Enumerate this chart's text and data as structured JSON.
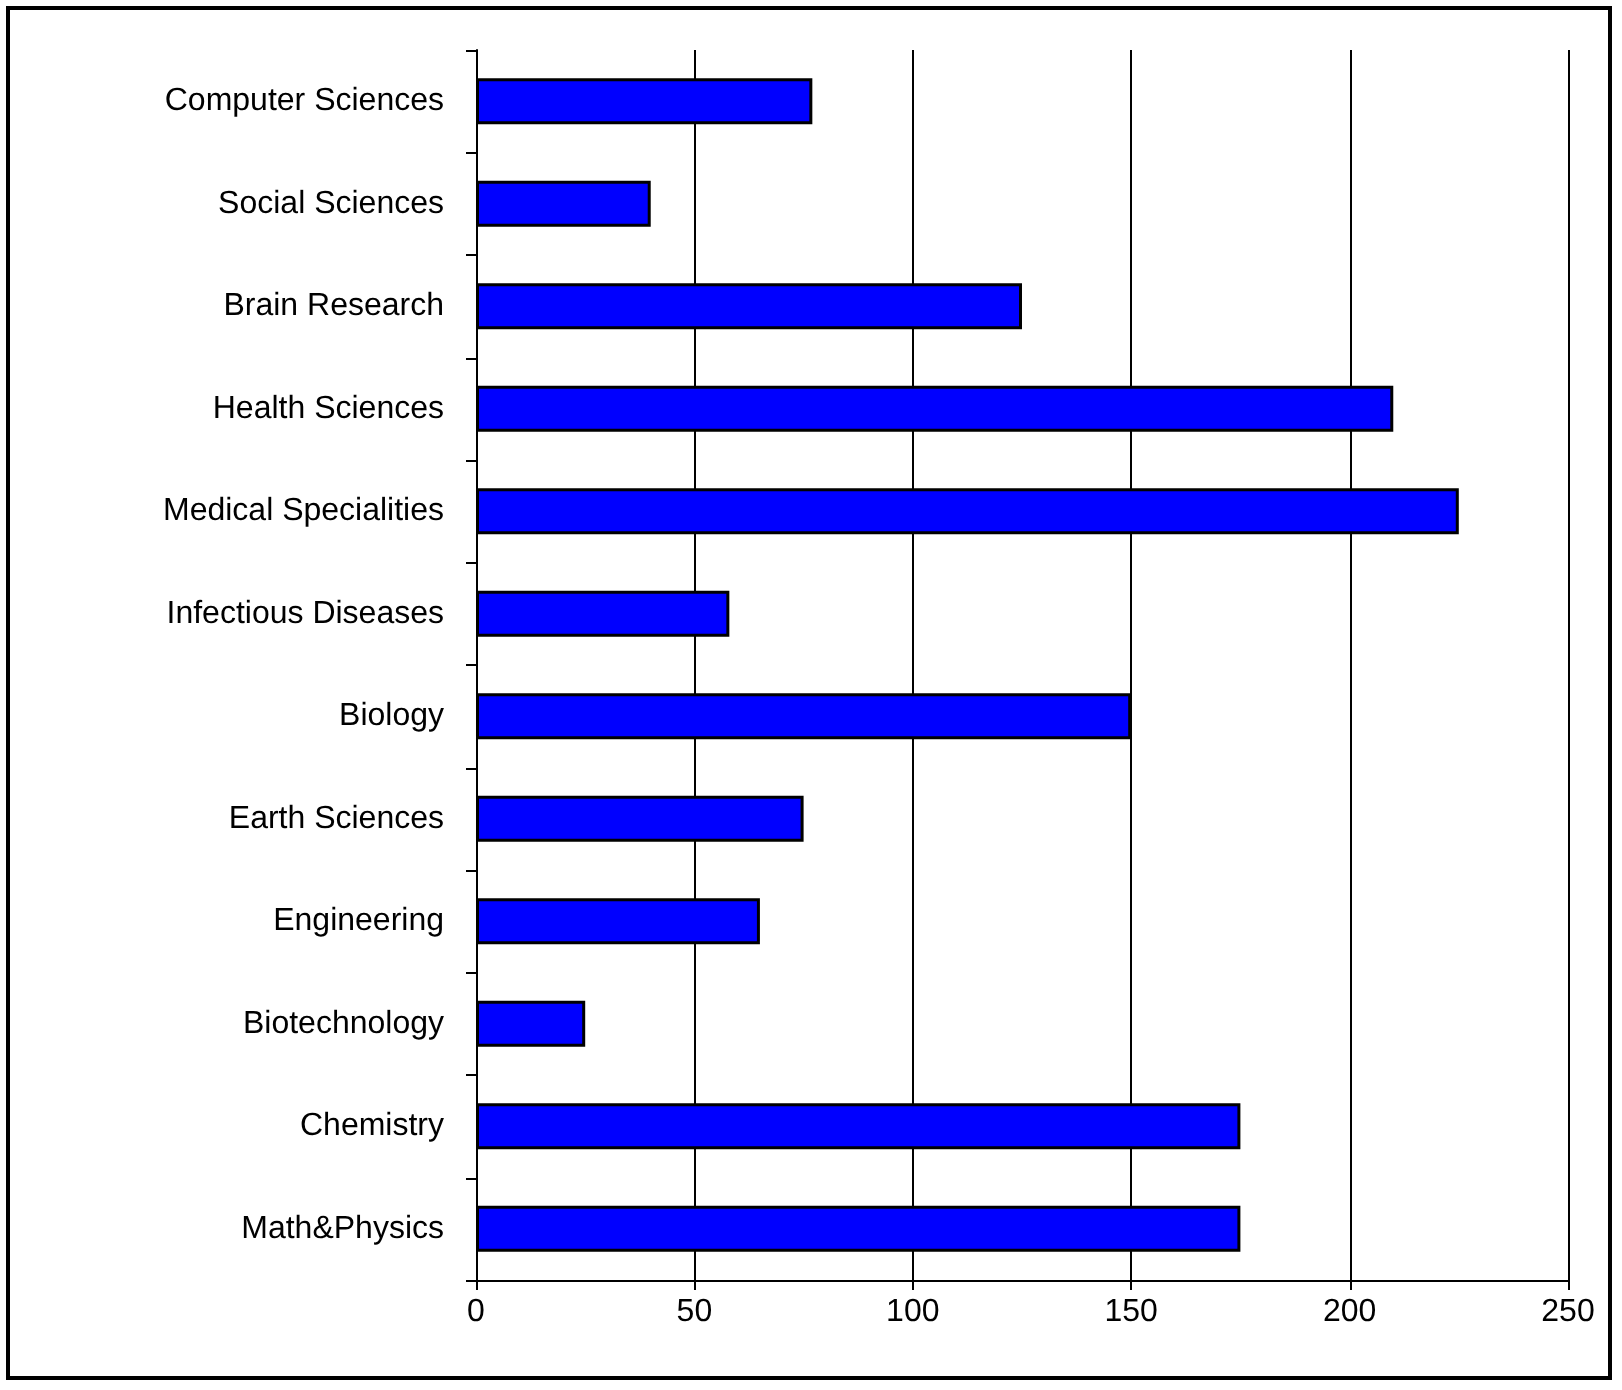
{
  "chart_data": {
    "type": "bar",
    "orientation": "horizontal",
    "categories": [
      "Computer Sciences",
      "Social Sciences",
      "Brain Research",
      "Health Sciences",
      "Medical Specialities",
      "Infectious Diseases",
      "Biology",
      "Earth Sciences",
      "Engineering",
      "Biotechnology",
      "Chemistry",
      "Math&Physics"
    ],
    "values": [
      77,
      40,
      125,
      210,
      225,
      58,
      150,
      75,
      65,
      25,
      175,
      175
    ],
    "color": "#0000ff",
    "xlim": [
      0,
      250
    ],
    "xticks": [
      0,
      50,
      100,
      150,
      200,
      250
    ],
    "grid": "x"
  }
}
